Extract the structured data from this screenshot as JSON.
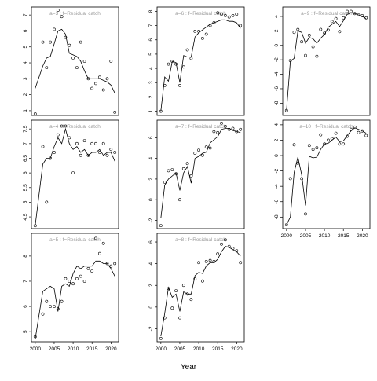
{
  "chart_data": {
    "type": "scatter",
    "title": "",
    "xlabel": "Year",
    "ylabel": "",
    "xlim": [
      1999,
      2022
    ],
    "x_ticks": [
      2000,
      2005,
      2010,
      2015,
      2020
    ],
    "grid": false,
    "legend": "none",
    "colors": {
      "points": "#000000",
      "line": "#000000",
      "panel_title": "#9a9a9a",
      "frame": "#000000"
    },
    "panels": [
      {
        "title": "a=3 : f=Residual catch",
        "row": 0,
        "col": 0,
        "ylim": [
          0.7,
          7.5
        ],
        "y_ticks": [
          1,
          2,
          3,
          4,
          5,
          6,
          7
        ],
        "x": [
          2000,
          2002,
          2003,
          2004,
          2005,
          2006,
          2007,
          2008,
          2009,
          2010,
          2011,
          2012,
          2013,
          2014,
          2015,
          2016,
          2017,
          2018,
          2019,
          2020,
          2021
        ],
        "points": [
          0.8,
          5.3,
          3.7,
          5.3,
          6.1,
          7.3,
          6.9,
          5.6,
          5.1,
          4.3,
          3.7,
          5.3,
          4.1,
          3.0,
          2.4,
          2.7,
          3.1,
          2.3,
          3.0,
          4.1,
          0.9
        ],
        "fit": [
          2.4,
          3.8,
          4.3,
          4.4,
          5.2,
          6.0,
          6.1,
          5.8,
          4.6,
          4.5,
          4.4,
          4.1,
          3.5,
          3.0,
          3.0,
          3.0,
          3.0,
          2.9,
          2.8,
          2.6,
          2.1
        ]
      },
      {
        "title": "a=4 : f=Residual catch",
        "row": 1,
        "col": 0,
        "ylim": [
          4.1,
          7.8
        ],
        "y_ticks": [
          4.5,
          5.0,
          5.5,
          6.0,
          6.5,
          7.0,
          7.5
        ],
        "x": [
          2000,
          2002,
          2003,
          2004,
          2005,
          2006,
          2007,
          2008,
          2009,
          2010,
          2011,
          2012,
          2013,
          2014,
          2015,
          2016,
          2017,
          2018,
          2019,
          2020,
          2021
        ],
        "points": [
          4.2,
          6.9,
          5.0,
          6.5,
          6.7,
          7.3,
          7.6,
          7.6,
          7.2,
          6.0,
          7.0,
          6.6,
          7.1,
          6.6,
          7.0,
          7.0,
          6.7,
          7.0,
          6.6,
          6.8,
          6.7
        ],
        "fit": [
          4.2,
          6.3,
          6.5,
          6.5,
          6.9,
          7.2,
          7.0,
          7.5,
          7.0,
          6.8,
          6.9,
          6.7,
          6.8,
          6.6,
          6.7,
          6.7,
          6.8,
          6.6,
          6.7,
          6.7,
          6.4
        ]
      },
      {
        "title": "a=5 : f=Residual catch",
        "row": 2,
        "col": 0,
        "ylim": [
          4.6,
          8.9
        ],
        "y_ticks": [
          5,
          6,
          7,
          8
        ],
        "x": [
          2000,
          2002,
          2003,
          2004,
          2005,
          2006,
          2007,
          2008,
          2009,
          2010,
          2011,
          2012,
          2013,
          2014,
          2015,
          2016,
          2017,
          2018,
          2019,
          2020,
          2021
        ],
        "points": [
          4.8,
          5.7,
          6.2,
          6.0,
          6.0,
          5.9,
          6.2,
          7.1,
          7.0,
          6.9,
          7.1,
          7.2,
          7.0,
          7.5,
          7.4,
          8.7,
          8.1,
          8.5,
          7.7,
          7.6,
          7.7
        ],
        "fit": [
          4.7,
          6.6,
          6.7,
          6.8,
          6.7,
          5.8,
          6.8,
          6.9,
          6.8,
          7.3,
          7.6,
          7.5,
          7.6,
          7.6,
          7.6,
          7.8,
          7.8,
          7.7,
          7.7,
          7.5,
          7.2
        ]
      },
      {
        "title": "a=6 : f=Residual catch",
        "row": 0,
        "col": 1,
        "ylim": [
          0.7,
          8.3
        ],
        "y_ticks": [
          1,
          2,
          3,
          4,
          5,
          6,
          7,
          8
        ],
        "x": [
          2000,
          2001,
          2002,
          2003,
          2004,
          2005,
          2006,
          2007,
          2008,
          2009,
          2010,
          2011,
          2012,
          2013,
          2014,
          2015,
          2016,
          2017,
          2018,
          2019,
          2020,
          2021
        ],
        "points": [
          1.0,
          2.8,
          4.3,
          4.5,
          4.3,
          2.8,
          4.1,
          5.3,
          4.7,
          6.6,
          6.6,
          6.1,
          6.4,
          7.0,
          7.2,
          7.9,
          7.8,
          7.7,
          7.6,
          7.7,
          7.8,
          7.0
        ],
        "fit": [
          1.0,
          3.4,
          3.1,
          4.5,
          4.4,
          3.0,
          4.9,
          4.8,
          4.8,
          6.2,
          6.5,
          6.7,
          6.9,
          7.1,
          7.2,
          7.3,
          7.4,
          7.4,
          7.3,
          7.3,
          7.2,
          6.8
        ]
      },
      {
        "title": "a=7 : f=Residual catch",
        "row": 1,
        "col": 1,
        "ylim": [
          -2.8,
          7.7
        ],
        "y_ticks": [
          -2,
          0,
          2,
          4,
          6
        ],
        "x": [
          2000,
          2001,
          2002,
          2003,
          2004,
          2005,
          2006,
          2007,
          2008,
          2009,
          2010,
          2011,
          2012,
          2013,
          2014,
          2015,
          2016,
          2017,
          2018,
          2019,
          2020,
          2021
        ],
        "points": [
          -2.5,
          1.7,
          2.8,
          2.9,
          2.5,
          0.0,
          3.0,
          3.5,
          2.3,
          4.5,
          4.8,
          4.3,
          5.1,
          5.0,
          6.6,
          6.5,
          7.4,
          7.1,
          6.8,
          6.9,
          6.6,
          6.8
        ],
        "fit": [
          -1.8,
          1.4,
          2.0,
          2.3,
          2.6,
          0.9,
          2.6,
          3.2,
          1.6,
          4.0,
          4.2,
          4.5,
          4.6,
          5.5,
          5.8,
          6.1,
          6.8,
          6.9,
          6.9,
          6.7,
          6.6,
          6.5
        ]
      },
      {
        "title": "a=8 : f=Residual catch",
        "row": 2,
        "col": 1,
        "ylim": [
          -3.2,
          6.8
        ],
        "y_ticks": [
          -2,
          0,
          2,
          4,
          6
        ],
        "x": [
          2000,
          2001,
          2002,
          2003,
          2004,
          2005,
          2006,
          2007,
          2008,
          2009,
          2010,
          2011,
          2012,
          2013,
          2014,
          2015,
          2016,
          2017,
          2018,
          2019,
          2020,
          2021
        ],
        "points": [
          -2.9,
          -1.0,
          1.7,
          -0.1,
          1.5,
          -1.0,
          2.0,
          1.2,
          0.7,
          2.6,
          4.1,
          2.4,
          4.2,
          4.3,
          4.2,
          4.9,
          5.8,
          6.2,
          5.6,
          5.4,
          5.2,
          4.1
        ],
        "fit": [
          -2.7,
          -0.6,
          1.8,
          0.9,
          1.2,
          -0.4,
          1.4,
          1.2,
          1.2,
          2.9,
          3.2,
          3.1,
          3.8,
          4.1,
          4.1,
          4.4,
          5.1,
          5.6,
          5.5,
          5.3,
          5.1,
          4.7
        ]
      },
      {
        "title": "a=9 : f=Residual catch",
        "row": 0,
        "col": 2,
        "ylim": [
          -9.7,
          5.3
        ],
        "y_ticks": [
          -8,
          -6,
          -4,
          -2,
          0,
          2,
          4
        ],
        "x": [
          2000,
          2001,
          2002,
          2003,
          2004,
          2005,
          2006,
          2007,
          2008,
          2009,
          2010,
          2011,
          2012,
          2013,
          2014,
          2015,
          2016,
          2017,
          2018,
          2019,
          2020,
          2021
        ],
        "points": [
          -9.0,
          -2.1,
          1.8,
          2.2,
          0.5,
          -1.4,
          1.4,
          -0.2,
          -1.5,
          2.2,
          1.7,
          2.1,
          3.3,
          3.7,
          1.9,
          3.8,
          4.7,
          4.7,
          4.4,
          4.2,
          4.1,
          3.8
        ],
        "fit": [
          -9.0,
          -2.2,
          -1.8,
          2.0,
          1.8,
          0.3,
          1.1,
          0.9,
          0.3,
          1.0,
          1.5,
          2.5,
          2.9,
          3.3,
          2.6,
          3.4,
          4.3,
          4.5,
          4.4,
          4.2,
          4.0,
          3.7
        ]
      },
      {
        "title": "a=10 : f=Residual catch",
        "row": 1,
        "col": 2,
        "ylim": [
          -9.5,
          4.6
        ],
        "y_ticks": [
          -8,
          -6,
          -4,
          -2,
          0,
          2,
          4
        ],
        "x": [
          2000,
          2001,
          2002,
          2003,
          2004,
          2005,
          2006,
          2007,
          2008,
          2009,
          2010,
          2011,
          2012,
          2013,
          2014,
          2015,
          2016,
          2017,
          2018,
          2019,
          2020,
          2021
        ],
        "points": [
          -9.0,
          -3.0,
          1.4,
          -1.0,
          -3.0,
          -7.6,
          1.3,
          0.8,
          1.0,
          2.7,
          1.5,
          2.0,
          2.2,
          2.9,
          1.5,
          1.5,
          2.5,
          3.4,
          3.7,
          3.0,
          3.2,
          2.6
        ],
        "fit": [
          -9.0,
          -8.0,
          -2.2,
          -0.2,
          -2.5,
          -6.5,
          -0.1,
          -0.3,
          -0.2,
          0.8,
          1.5,
          1.6,
          2.0,
          2.4,
          1.8,
          1.9,
          2.6,
          3.2,
          3.6,
          3.4,
          3.2,
          2.9
        ]
      }
    ]
  }
}
